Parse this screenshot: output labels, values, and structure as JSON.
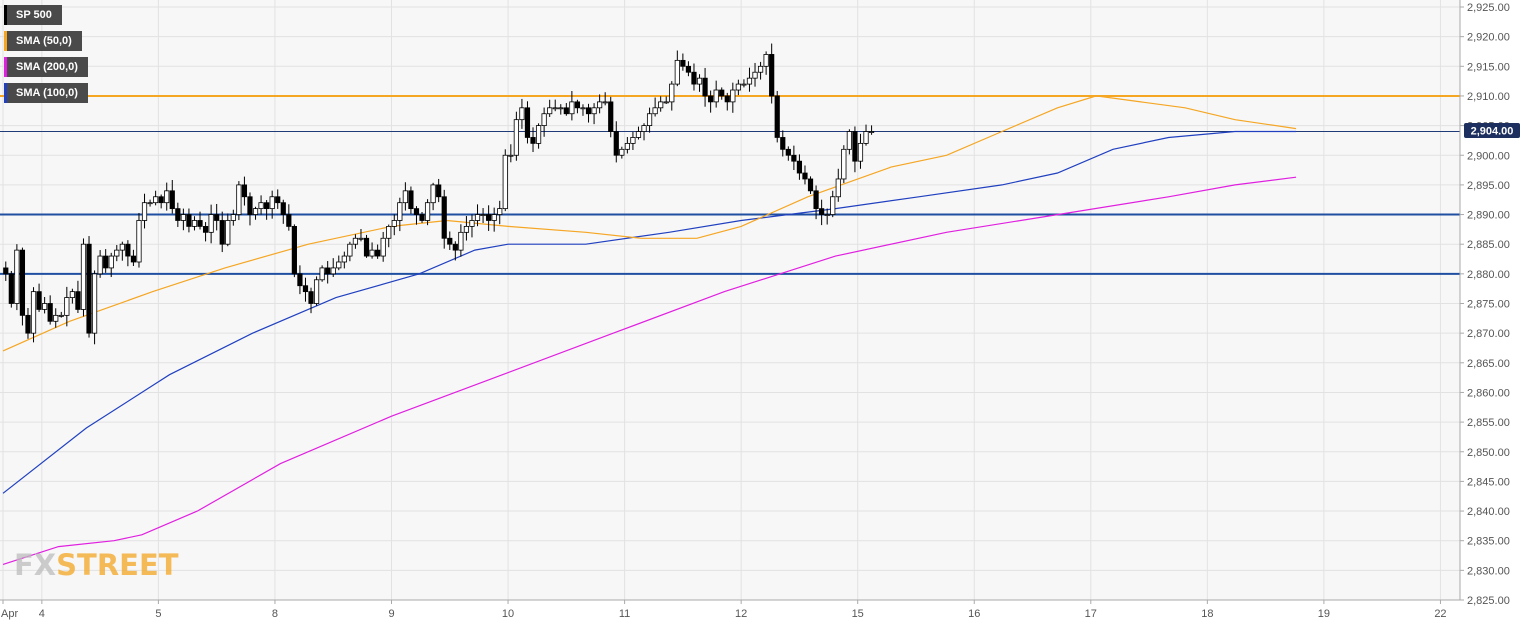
{
  "legend": [
    {
      "label": "SP 500",
      "color": "#000000"
    },
    {
      "label": "SMA (50,0)",
      "color": "#f5a623"
    },
    {
      "label": "SMA (200,0)",
      "color": "#e020e0"
    },
    {
      "label": "SMA (100,0)",
      "color": "#2040c0"
    }
  ],
  "logo": {
    "part1": "FX",
    "part2": "STREET"
  },
  "price_badge": "2,904.00",
  "chart_data": {
    "type": "candlestick",
    "y_axis": {
      "range": [
        2825,
        2925
      ],
      "ticks": [
        "2,925.00",
        "2,920.00",
        "2,915.00",
        "2,910.00",
        "2,905.00",
        "2,900.00",
        "2,895.00",
        "2,890.00",
        "2,885.00",
        "2,880.00",
        "2,875.00",
        "2,870.00",
        "2,865.00",
        "2,860.00",
        "2,855.00",
        "2,850.00",
        "2,845.00",
        "2,840.00",
        "2,835.00",
        "2,830.00",
        "2,825.00"
      ]
    },
    "x_axis": {
      "ticks": [
        {
          "label": "Apr",
          "t": 0
        },
        {
          "label": "4",
          "t": 7
        },
        {
          "label": "5",
          "t": 28
        },
        {
          "label": "8",
          "t": 49
        },
        {
          "label": "9",
          "t": 70
        },
        {
          "label": "10",
          "t": 91
        },
        {
          "label": "11",
          "t": 112
        },
        {
          "label": "12",
          "t": 133
        },
        {
          "label": "15",
          "t": 154
        },
        {
          "label": "16",
          "t": 175
        },
        {
          "label": "17",
          "t": 196
        },
        {
          "label": "18",
          "t": 217
        },
        {
          "label": "19",
          "t": 238
        },
        {
          "label": "22",
          "t": 259
        }
      ]
    },
    "grid": true,
    "horizontal_levels": [
      {
        "value": 2910,
        "color": "#f5a623"
      },
      {
        "value": 2904,
        "color": "#203a7a"
      },
      {
        "value": 2890,
        "color": "#1f4fa0"
      },
      {
        "value": 2880,
        "color": "#1f4fa0"
      }
    ],
    "closes": [
      2880,
      2875,
      2884,
      2873,
      2870,
      2877,
      2874,
      2875,
      2872,
      2873,
      2873,
      2876,
      2877,
      2874,
      2885,
      2870,
      2880,
      2883,
      2881,
      2883,
      2884,
      2885,
      2883,
      2882,
      2889,
      2892,
      2892,
      2893,
      2892,
      2894,
      2891,
      2889,
      2890,
      2888,
      2889,
      2888,
      2887,
      2890,
      2889,
      2885,
      2889,
      2890,
      2895,
      2893,
      2890,
      2891,
      2892,
      2891,
      2893,
      2892,
      2890,
      2888,
      2880,
      2878,
      2877,
      2875,
      2879,
      2881,
      2880,
      2881,
      2882,
      2883,
      2885,
      2886,
      2886,
      2883,
      2884,
      2883,
      2886,
      2888,
      2889,
      2892,
      2894,
      2891,
      2890,
      2889,
      2892,
      2895,
      2893,
      2886,
      2885,
      2884,
      2887,
      2888,
      2889,
      2890,
      2890,
      2889,
      2890,
      2891,
      2900,
      2900,
      2906,
      2908,
      2903,
      2902,
      2905,
      2907,
      2908,
      2908,
      2908,
      2907,
      2909,
      2908,
      2908,
      2907,
      2908,
      2909,
      2909,
      2904,
      2900,
      2901,
      2902,
      2903,
      2904,
      2905,
      2907,
      2908,
      2909,
      2909,
      2912,
      2916,
      2915,
      2914,
      2912,
      2913,
      2910,
      2909,
      2911,
      2910,
      2909,
      2911,
      2912,
      2912,
      2913,
      2914,
      2915,
      2917,
      2910,
      2903,
      2901,
      2900,
      2899,
      2897,
      2896,
      2894,
      2891,
      2890,
      2890,
      2893,
      2896,
      2901,
      2904,
      2899,
      2902,
      2904,
      2904
    ],
    "sma_50": {
      "t": [
        0,
        12,
        27,
        40,
        55,
        70,
        80,
        91,
        105,
        115,
        125,
        133,
        145,
        160,
        170,
        180,
        190,
        197,
        205,
        213,
        222,
        233
      ],
      "v": [
        2867,
        2872,
        2877,
        2881,
        2885,
        2888,
        2889,
        2888,
        2887,
        2886,
        2886,
        2888,
        2893,
        2898,
        2900,
        2904,
        2908,
        2910,
        2909,
        2908,
        2906,
        2904.5
      ]
    },
    "sma_100": {
      "t": [
        0,
        15,
        30,
        45,
        60,
        75,
        85,
        91,
        105,
        120,
        133,
        150,
        165,
        180,
        190,
        200,
        210,
        222,
        233
      ],
      "v": [
        2843,
        2854,
        2863,
        2870,
        2876,
        2880,
        2884,
        2885,
        2885,
        2887,
        2889,
        2891,
        2893,
        2895,
        2897,
        2901,
        2903,
        2904,
        2904
      ]
    },
    "sma_200": {
      "t": [
        0,
        10,
        20,
        25,
        35,
        50,
        70,
        90,
        110,
        130,
        150,
        170,
        190,
        210,
        222,
        233
      ],
      "v": [
        2831,
        2834,
        2835,
        2836,
        2840,
        2848,
        2856,
        2863,
        2870,
        2877,
        2883,
        2887,
        2890,
        2893,
        2895,
        2896.3
      ]
    }
  }
}
